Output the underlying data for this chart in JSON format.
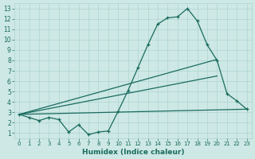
{
  "xlabel": "Humidex (Indice chaleur)",
  "xlim": [
    -0.5,
    23.5
  ],
  "ylim": [
    0.5,
    13.5
  ],
  "xticks": [
    0,
    1,
    2,
    3,
    4,
    5,
    6,
    7,
    8,
    9,
    10,
    11,
    12,
    13,
    14,
    15,
    16,
    17,
    18,
    19,
    20,
    21,
    22,
    23
  ],
  "yticks": [
    1,
    2,
    3,
    4,
    5,
    6,
    7,
    8,
    9,
    10,
    11,
    12,
    13
  ],
  "background_color": "#cde8e5",
  "grid_color": "#b0d4d0",
  "line_color": "#1a6b5e",
  "line1_x": [
    0,
    1,
    2,
    3,
    4,
    5,
    6,
    7,
    8,
    9,
    10,
    11,
    12,
    13,
    14,
    15,
    16,
    17,
    18,
    19,
    20,
    21,
    22,
    23
  ],
  "line1_y": [
    2.8,
    2.5,
    2.2,
    2.5,
    2.3,
    1.1,
    1.8,
    0.85,
    1.1,
    1.2,
    3.1,
    5.1,
    7.3,
    9.5,
    11.5,
    12.1,
    12.2,
    13.0,
    11.8,
    9.5,
    8.0,
    4.8,
    4.1,
    3.3
  ],
  "line2_x": [
    0,
    20
  ],
  "line2_y": [
    2.8,
    8.1
  ],
  "line3_x": [
    0,
    20
  ],
  "line3_y": [
    2.8,
    6.5
  ],
  "line4_x": [
    0,
    23
  ],
  "line4_y": [
    2.8,
    3.3
  ]
}
